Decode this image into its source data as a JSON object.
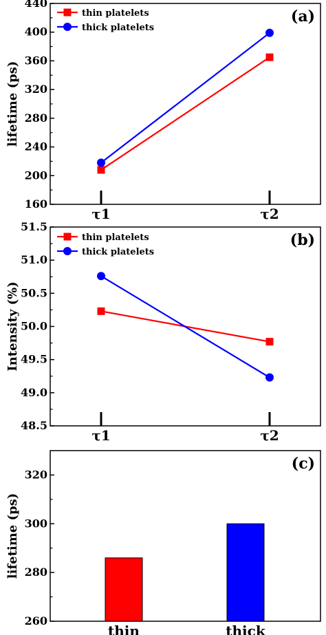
{
  "chart_data": [
    {
      "type": "line",
      "panel_label": "(a)",
      "title": "",
      "xlabel": "",
      "ylabel": "lifetime (ps)",
      "categories": [
        "τ1",
        "τ2"
      ],
      "ylim": [
        160,
        440
      ],
      "yticks": [
        160,
        200,
        240,
        280,
        320,
        360,
        400,
        440
      ],
      "legend_position": "top-left",
      "series": [
        {
          "name": "thin platelets",
          "color": "#ff0000",
          "marker": "square",
          "values": [
            208,
            365
          ]
        },
        {
          "name": "thick platelets",
          "color": "#0000ff",
          "marker": "circle",
          "values": [
            218,
            399
          ]
        }
      ]
    },
    {
      "type": "line",
      "panel_label": "(b)",
      "title": "",
      "xlabel": "",
      "ylabel": "Intensity (%)",
      "categories": [
        "τ1",
        "τ2"
      ],
      "ylim": [
        48.5,
        51.5
      ],
      "yticks": [
        "48.5",
        "49.0",
        "49.5",
        "50.0",
        "50.5",
        "51.0",
        "51.5"
      ],
      "legend_position": "top-left",
      "series": [
        {
          "name": "thin platelets",
          "color": "#ff0000",
          "marker": "square",
          "values": [
            50.23,
            49.77
          ]
        },
        {
          "name": "thick platelets",
          "color": "#0000ff",
          "marker": "circle",
          "values": [
            50.76,
            49.23
          ]
        }
      ]
    },
    {
      "type": "bar",
      "panel_label": "(c)",
      "title": "",
      "xlabel": "",
      "ylabel": "lifetime (ps)",
      "categories": [
        "thin",
        "thick"
      ],
      "values": [
        286,
        300
      ],
      "colors": [
        "#ff0000",
        "#0000ff"
      ],
      "ylim": [
        260,
        330
      ],
      "yticks": [
        260,
        280,
        300,
        320
      ]
    }
  ]
}
